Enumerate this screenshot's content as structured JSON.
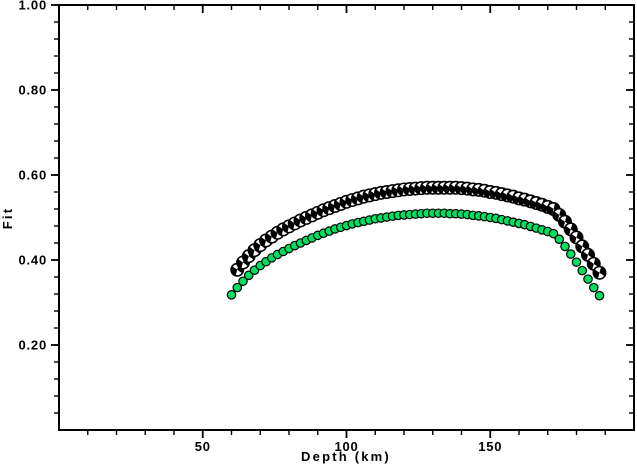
{
  "page": {
    "background": "#ffffff"
  },
  "chart_data": {
    "type": "scatter",
    "title": "",
    "xlabel": "Depth (km)",
    "ylabel": "Fit",
    "xlim": [
      0,
      200
    ],
    "ylim": [
      0.0,
      1.0
    ],
    "grid": false,
    "legend": "none",
    "frame_color": "#000000",
    "x_major_ticks": [
      {
        "value": 50,
        "label": "50"
      },
      {
        "value": 100,
        "label": "100"
      },
      {
        "value": 150,
        "label": "150"
      }
    ],
    "x_minor_step": 10,
    "y_major_ticks": [
      {
        "value": 0.2,
        "label": "0.20"
      },
      {
        "value": 0.4,
        "label": "0.40"
      },
      {
        "value": 0.6,
        "label": "0.60"
      },
      {
        "value": 0.8,
        "label": "0.80"
      },
      {
        "value": 1.0,
        "label": "1.00"
      }
    ],
    "y_minor_step": 0.04,
    "series": [
      {
        "name": "beachball-fit-curve",
        "marker": "beachball",
        "fill": "#ffffff",
        "edge": "#000000",
        "x": [
          62,
          64,
          66,
          68,
          70,
          72,
          74,
          76,
          78,
          80,
          82,
          84,
          86,
          88,
          90,
          92,
          94,
          96,
          98,
          100,
          102,
          104,
          106,
          108,
          110,
          112,
          114,
          116,
          118,
          120,
          122,
          124,
          126,
          128,
          130,
          132,
          134,
          136,
          138,
          140,
          142,
          144,
          146,
          148,
          150,
          152,
          154,
          156,
          158,
          160,
          162,
          164,
          166,
          168,
          170,
          172,
          174,
          176,
          178,
          180,
          182,
          184,
          186,
          188
        ],
        "y": [
          0.377,
          0.394,
          0.409,
          0.423,
          0.435,
          0.446,
          0.455,
          0.464,
          0.472,
          0.479,
          0.486,
          0.493,
          0.499,
          0.505,
          0.511,
          0.517,
          0.522,
          0.527,
          0.532,
          0.537,
          0.541,
          0.545,
          0.549,
          0.552,
          0.555,
          0.558,
          0.56,
          0.562,
          0.564,
          0.566,
          0.567,
          0.568,
          0.569,
          0.57,
          0.57,
          0.57,
          0.57,
          0.57,
          0.57,
          0.569,
          0.568,
          0.566,
          0.565,
          0.563,
          0.56,
          0.558,
          0.555,
          0.552,
          0.549,
          0.545,
          0.542,
          0.538,
          0.534,
          0.53,
          0.525,
          0.52,
          0.506,
          0.49,
          0.472,
          0.453,
          0.432,
          0.412,
          0.391,
          0.37
        ]
      },
      {
        "name": "green-circle-fit-curve",
        "marker": "circle",
        "fill": "#00df60",
        "edge": "#000000",
        "x": [
          60,
          62,
          64,
          66,
          68,
          70,
          72,
          74,
          76,
          78,
          80,
          82,
          84,
          86,
          88,
          90,
          92,
          94,
          96,
          98,
          100,
          102,
          104,
          106,
          108,
          110,
          112,
          114,
          116,
          118,
          120,
          122,
          124,
          126,
          128,
          130,
          132,
          134,
          136,
          138,
          140,
          142,
          144,
          146,
          148,
          150,
          152,
          154,
          156,
          158,
          160,
          162,
          164,
          166,
          168,
          170,
          172,
          174,
          176,
          178,
          180,
          182,
          184,
          186,
          188
        ],
        "y": [
          0.318,
          0.335,
          0.35,
          0.364,
          0.376,
          0.387,
          0.396,
          0.405,
          0.413,
          0.42,
          0.427,
          0.434,
          0.44,
          0.446,
          0.452,
          0.458,
          0.463,
          0.468,
          0.473,
          0.477,
          0.481,
          0.485,
          0.488,
          0.491,
          0.494,
          0.497,
          0.499,
          0.501,
          0.503,
          0.505,
          0.506,
          0.507,
          0.508,
          0.509,
          0.51,
          0.51,
          0.51,
          0.51,
          0.509,
          0.509,
          0.508,
          0.507,
          0.505,
          0.504,
          0.502,
          0.5,
          0.498,
          0.495,
          0.492,
          0.489,
          0.486,
          0.483,
          0.479,
          0.475,
          0.471,
          0.467,
          0.462,
          0.449,
          0.432,
          0.414,
          0.395,
          0.375,
          0.355,
          0.335,
          0.316
        ]
      }
    ]
  }
}
